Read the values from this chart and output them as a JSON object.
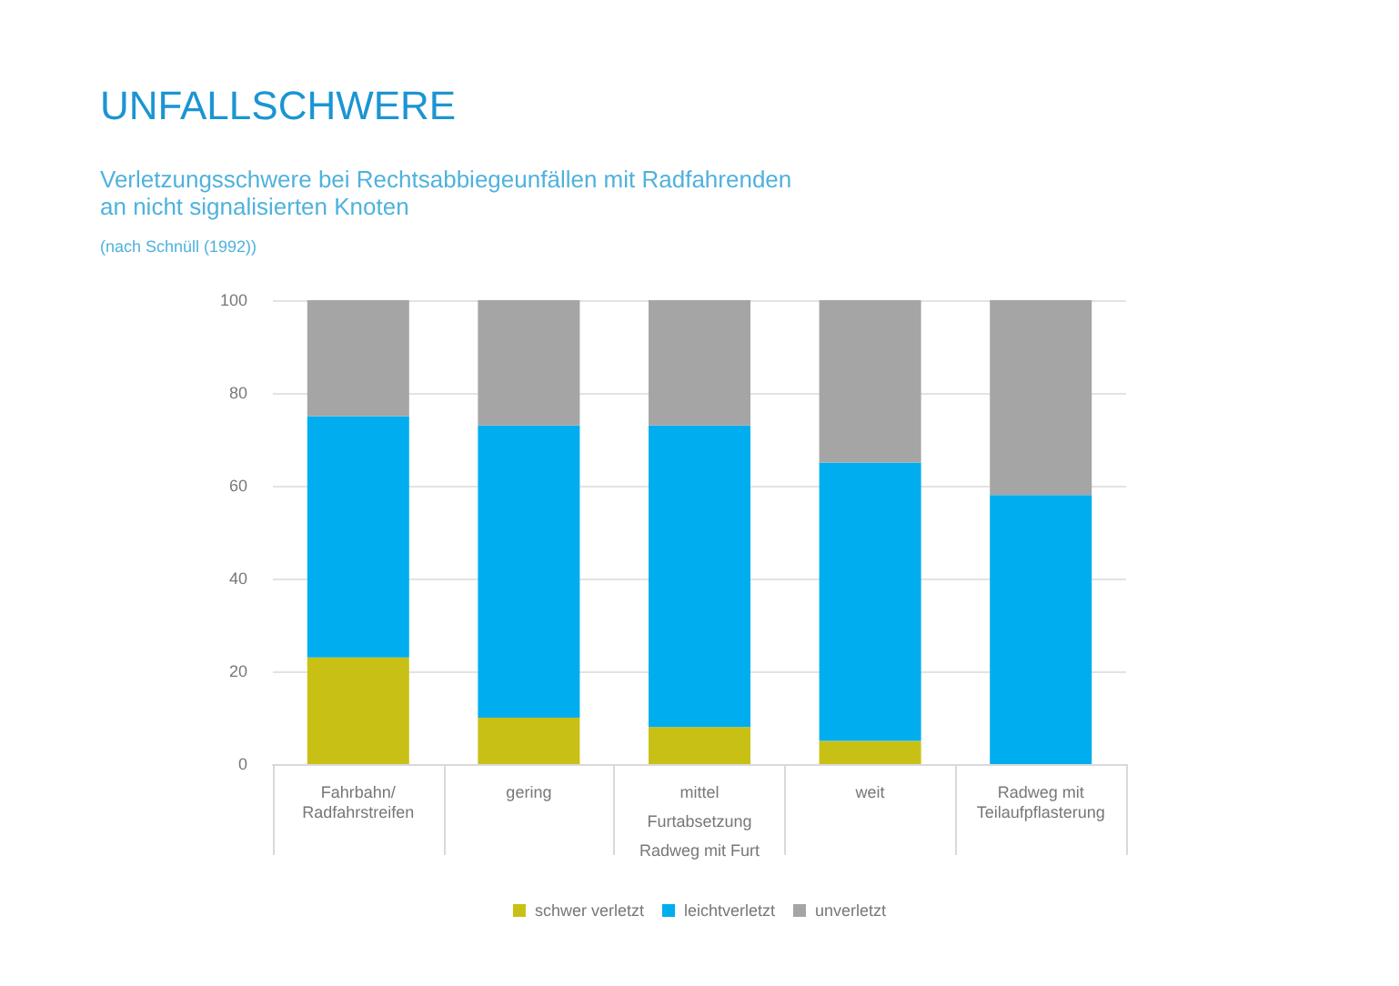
{
  "chart_data": {
    "type": "bar",
    "title": "UNFALLSCHWERE",
    "subtitle": "Verletzungsschwere bei Rechtsabbiegeunfällen mit Radfahrenden\nan nicht signalisierten Knoten",
    "annotations": [
      "(nach Schnüll (1992))",
      "Furtabsetzung",
      "Radweg mit Furt"
    ],
    "categories": [
      "Fahrbahn/\nRadfahrstreifen",
      "gering",
      "mittel",
      "weit",
      "Radweg mit\nTeilaufpflasterung"
    ],
    "stacked": true,
    "series": [
      {
        "name": "schwer verletzt",
        "color": "#c9c016",
        "values": [
          23,
          10,
          8,
          5,
          0
        ]
      },
      {
        "name": "leichtverletzt",
        "color": "#00adee",
        "values": [
          52,
          63,
          65,
          60,
          58
        ]
      },
      {
        "name": "unverletzt",
        "color": "#a5a5a5",
        "values": [
          25,
          27,
          27,
          35,
          42
        ]
      }
    ],
    "ylim": [
      0,
      100
    ],
    "yticks": [
      0,
      20,
      40,
      60,
      80,
      100
    ],
    "grid": "y",
    "legend": "bottom"
  }
}
